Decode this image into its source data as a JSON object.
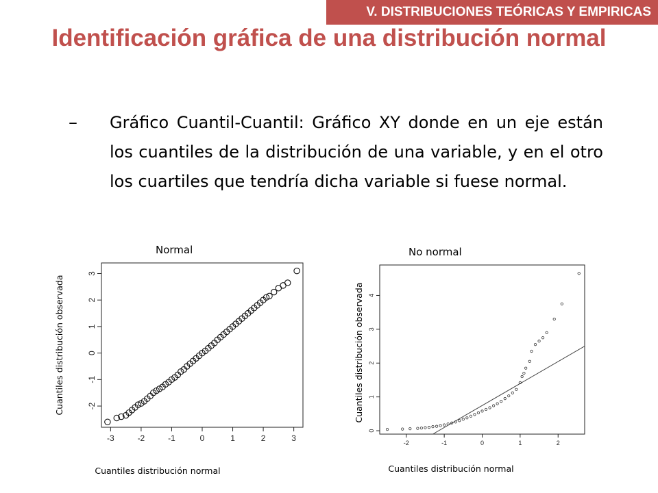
{
  "header": {
    "section_tag": "V. DISTRIBUCIONES TEÓRICAS Y EMPIRICAS",
    "title": "Identificación gráfica de una distribución normal"
  },
  "bullet": {
    "dash": "–",
    "text": "Gráfico Cuantil-Cuantil: Gráfico XY donde en un eje están los cuantiles de la distribución de una variable, y en el otro los cuartiles que tendría dicha variable si fuese normal."
  },
  "colors": {
    "accent": "#c0504d",
    "text": "#000000"
  },
  "panels": [
    {
      "label": "Normal",
      "xlabel": "Cuantiles distribución normal",
      "ylabel": "Cuantiles distribución observada"
    },
    {
      "label": "No normal",
      "xlabel": "Cuantiles distribución normal",
      "ylabel": "Cuantiles distribución observada"
    }
  ],
  "chart_data": [
    {
      "type": "scatter",
      "title": "Normal",
      "xlabel": "Cuantiles distribución normal",
      "ylabel": "Cuantiles distribución observada",
      "xlim": [
        -3.3,
        3.3
      ],
      "ylim": [
        -2.8,
        3.4
      ],
      "xticks": [
        -3,
        -2,
        -1,
        0,
        1,
        2,
        3
      ],
      "yticks": [
        -2,
        -1,
        0,
        1,
        2,
        3
      ],
      "xtick_labels": [
        "-3",
        "-2",
        "-1",
        "0",
        "1",
        "2",
        "3"
      ],
      "ytick_labels": [
        "-2",
        "-1",
        "0",
        "1",
        "2",
        "3"
      ],
      "grid": false,
      "series": [
        {
          "points": [
            [
              -3.1,
              -2.6
            ],
            [
              -2.8,
              -2.45
            ],
            [
              -2.65,
              -2.4
            ],
            [
              -2.5,
              -2.35
            ],
            [
              -2.4,
              -2.25
            ],
            [
              -2.3,
              -2.15
            ],
            [
              -2.2,
              -2.05
            ],
            [
              -2.1,
              -1.95
            ],
            [
              -2.0,
              -1.9
            ],
            [
              -1.9,
              -1.82
            ],
            [
              -1.8,
              -1.72
            ],
            [
              -1.7,
              -1.62
            ],
            [
              -1.6,
              -1.5
            ],
            [
              -1.5,
              -1.42
            ],
            [
              -1.4,
              -1.35
            ],
            [
              -1.3,
              -1.28
            ],
            [
              -1.2,
              -1.18
            ],
            [
              -1.1,
              -1.1
            ],
            [
              -1.0,
              -1.0
            ],
            [
              -0.9,
              -0.92
            ],
            [
              -0.8,
              -0.82
            ],
            [
              -0.7,
              -0.7
            ],
            [
              -0.6,
              -0.62
            ],
            [
              -0.5,
              -0.5
            ],
            [
              -0.4,
              -0.4
            ],
            [
              -0.3,
              -0.3
            ],
            [
              -0.2,
              -0.2
            ],
            [
              -0.1,
              -0.1
            ],
            [
              0.0,
              0.0
            ],
            [
              0.1,
              0.08
            ],
            [
              0.2,
              0.18
            ],
            [
              0.3,
              0.28
            ],
            [
              0.4,
              0.38
            ],
            [
              0.5,
              0.5
            ],
            [
              0.6,
              0.6
            ],
            [
              0.7,
              0.7
            ],
            [
              0.8,
              0.8
            ],
            [
              0.9,
              0.9
            ],
            [
              1.0,
              1.0
            ],
            [
              1.1,
              1.1
            ],
            [
              1.2,
              1.2
            ],
            [
              1.3,
              1.3
            ],
            [
              1.4,
              1.4
            ],
            [
              1.5,
              1.5
            ],
            [
              1.6,
              1.6
            ],
            [
              1.7,
              1.7
            ],
            [
              1.8,
              1.8
            ],
            [
              1.9,
              1.9
            ],
            [
              2.0,
              2.0
            ],
            [
              2.1,
              2.1
            ],
            [
              2.2,
              2.15
            ],
            [
              2.35,
              2.3
            ],
            [
              2.5,
              2.45
            ],
            [
              2.65,
              2.55
            ],
            [
              2.8,
              2.65
            ],
            [
              3.1,
              3.1
            ]
          ]
        }
      ]
    },
    {
      "type": "scatter",
      "title": "No normal",
      "xlabel": "Cuantiles distribución normal",
      "ylabel": "Cuantiles distribución observada",
      "xlim": [
        -2.7,
        2.7
      ],
      "ylim": [
        -0.1,
        4.9
      ],
      "xticks": [
        -2,
        -1,
        0,
        1,
        2
      ],
      "yticks": [
        0,
        1,
        2,
        3,
        4
      ],
      "xtick_labels": [
        "-2",
        "-1",
        "0",
        "1",
        "2"
      ],
      "ytick_labels": [
        "0",
        "1",
        "2",
        "3",
        "4"
      ],
      "grid": false,
      "reference_line": [
        [
          -1.3,
          -0.1
        ],
        [
          2.7,
          2.5
        ]
      ],
      "series": [
        {
          "points": [
            [
              -2.5,
              0.04
            ],
            [
              -2.1,
              0.05
            ],
            [
              -1.9,
              0.06
            ],
            [
              -1.7,
              0.07
            ],
            [
              -1.6,
              0.08
            ],
            [
              -1.5,
              0.09
            ],
            [
              -1.4,
              0.1
            ],
            [
              -1.3,
              0.12
            ],
            [
              -1.2,
              0.13
            ],
            [
              -1.1,
              0.15
            ],
            [
              -1.0,
              0.17
            ],
            [
              -0.9,
              0.2
            ],
            [
              -0.8,
              0.23
            ],
            [
              -0.7,
              0.26
            ],
            [
              -0.6,
              0.3
            ],
            [
              -0.5,
              0.34
            ],
            [
              -0.4,
              0.38
            ],
            [
              -0.3,
              0.43
            ],
            [
              -0.2,
              0.48
            ],
            [
              -0.1,
              0.53
            ],
            [
              0.0,
              0.58
            ],
            [
              0.1,
              0.63
            ],
            [
              0.2,
              0.68
            ],
            [
              0.3,
              0.74
            ],
            [
              0.4,
              0.8
            ],
            [
              0.5,
              0.87
            ],
            [
              0.6,
              0.95
            ],
            [
              0.7,
              1.03
            ],
            [
              0.8,
              1.12
            ],
            [
              0.9,
              1.22
            ],
            [
              1.0,
              1.42
            ],
            [
              1.05,
              1.6
            ],
            [
              1.1,
              1.7
            ],
            [
              1.15,
              1.85
            ],
            [
              1.25,
              2.05
            ],
            [
              1.3,
              2.35
            ],
            [
              1.4,
              2.55
            ],
            [
              1.5,
              2.65
            ],
            [
              1.6,
              2.75
            ],
            [
              1.7,
              2.9
            ],
            [
              1.9,
              3.3
            ],
            [
              2.1,
              3.75
            ],
            [
              2.55,
              4.65
            ]
          ]
        }
      ]
    }
  ]
}
